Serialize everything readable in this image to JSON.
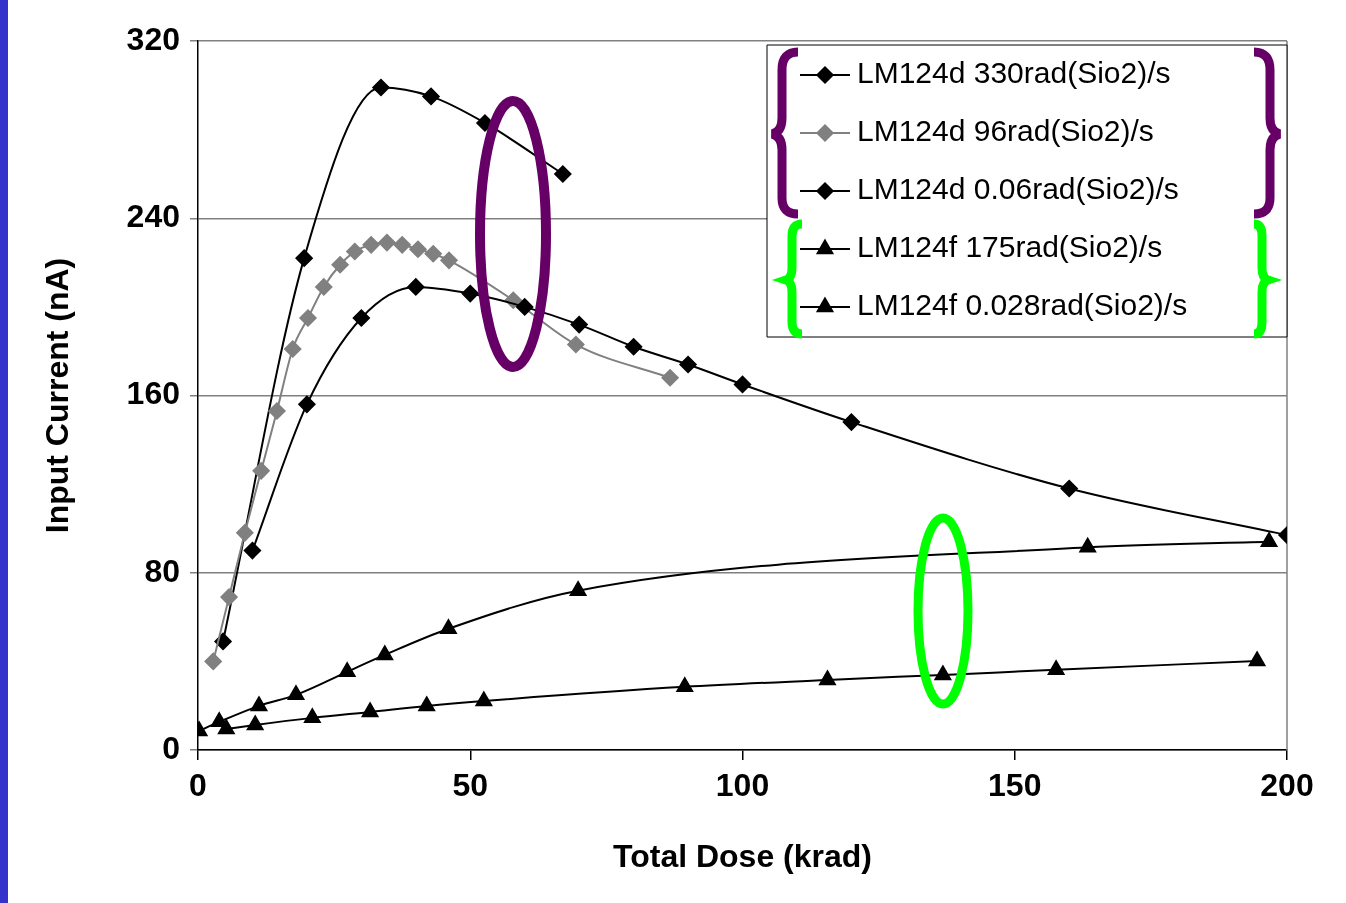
{
  "chart_data": {
    "type": "line",
    "xlabel": "Total Dose (krad)",
    "ylabel": "Input Current (nA)",
    "xlim": [
      0,
      200
    ],
    "xticks": [
      0,
      50,
      100,
      150,
      200
    ],
    "ylim": [
      0,
      320
    ],
    "yticks": [
      0,
      80,
      160,
      240,
      320
    ],
    "grid": "y",
    "legend": "top right",
    "line_style": "solid",
    "series": [
      {
        "name": "LM124d 330rad(Sio2)/s",
        "color": "#000000",
        "marker": "diamond",
        "x": [
          10,
          20,
          30,
          40,
          50,
          60,
          70,
          80,
          90,
          100,
          120,
          160,
          200
        ],
        "values": [
          90,
          156,
          195,
          209,
          206,
          200,
          192,
          182,
          174,
          165,
          148,
          118,
          97
        ]
      },
      {
        "name": "LM124d 96rad(Sio2)/s",
        "color": "#808080",
        "marker": "diamond",
        "x": [
          2.8,
          5.7,
          8.6,
          11.6,
          14.5,
          17.4,
          20.2,
          23.1,
          26.1,
          28.8,
          31.8,
          34.7,
          37.5,
          40.4,
          43.2,
          46.1,
          57.9,
          69.4,
          86.7
        ],
        "values": [
          40,
          69,
          98,
          126,
          153,
          181,
          195,
          209,
          219,
          225,
          228,
          229,
          228,
          226,
          224,
          221,
          203,
          183,
          168
        ]
      },
      {
        "name": "LM124d 0.06rad(Sio2)/s",
        "color": "#000000",
        "marker": "diamond",
        "x": [
          4.6,
          19.5,
          33.6,
          42.8,
          52.7,
          67
        ],
        "values": [
          49,
          222,
          299,
          295,
          283,
          260
        ]
      },
      {
        "name": "LM124f 175rad(Sio2)/s",
        "color": "#000000",
        "marker": "triangle",
        "x": [
          5.2,
          10.5,
          21,
          31.6,
          42,
          52.5,
          89.4,
          115.6,
          136.8,
          157.6,
          194.5
        ],
        "values": [
          9.5,
          11.3,
          14.5,
          17.2,
          19.9,
          22.1,
          28.5,
          31.6,
          33.9,
          36.2,
          40.2
        ]
      },
      {
        "name": "LM124f 0.028rad(Sio2)/s",
        "color": "#000000",
        "marker": "triangle",
        "x": [
          0.2,
          3.9,
          11.2,
          18,
          27.4,
          34.3,
          46,
          69.8,
          163.4,
          196.7
        ],
        "values": [
          8.6,
          12.7,
          19.9,
          24.9,
          35.3,
          42.9,
          54.7,
          71.9,
          91.5,
          94
        ]
      }
    ]
  }
}
